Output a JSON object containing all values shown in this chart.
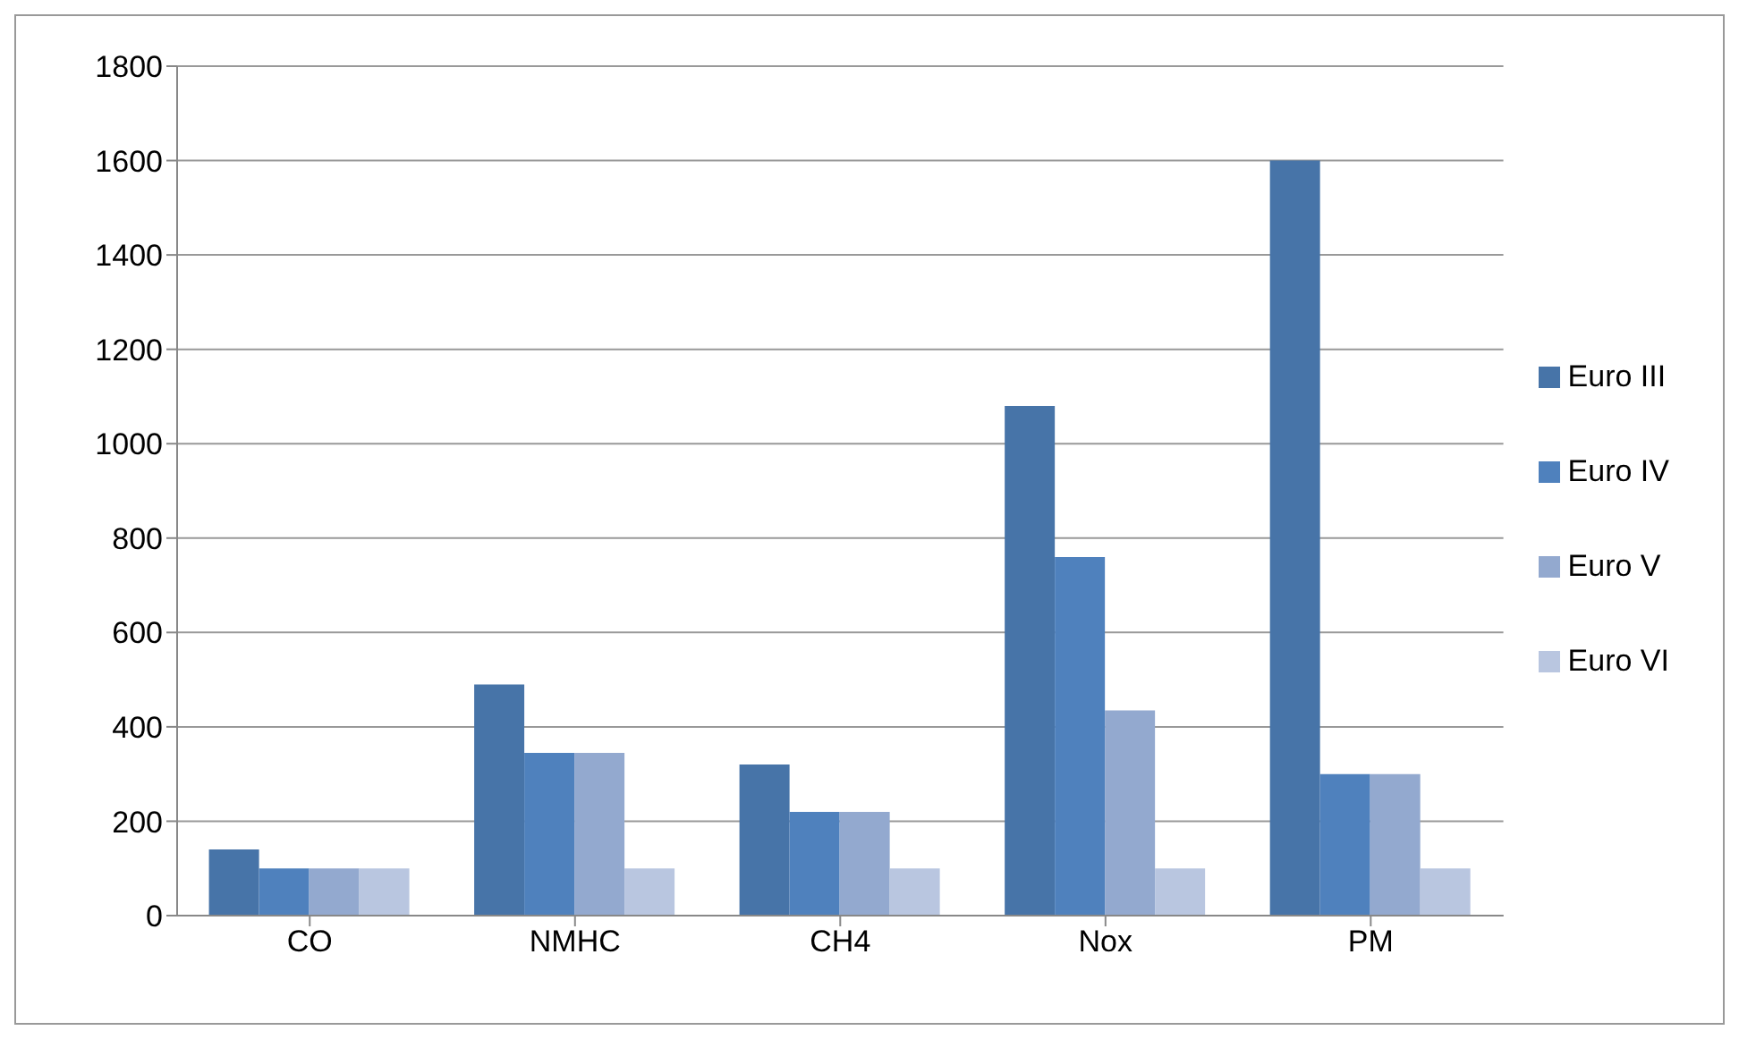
{
  "chart_data": {
    "type": "bar",
    "categories": [
      "CO",
      "NMHC",
      "CH4",
      "Nox",
      "PM"
    ],
    "series": [
      {
        "name": "Euro III",
        "color": "#4774a8",
        "values": [
          140,
          490,
          320,
          1080,
          1600
        ]
      },
      {
        "name": "Euro IV",
        "color": "#4f81bd",
        "values": [
          100,
          345,
          220,
          760,
          300
        ]
      },
      {
        "name": "Euro V",
        "color": "#93a9cf",
        "values": [
          100,
          345,
          220,
          435,
          300
        ]
      },
      {
        "name": "Euro VI",
        "color": "#b9c6e0",
        "values": [
          100,
          100,
          100,
          100,
          100
        ]
      }
    ],
    "ylim": [
      0,
      1800
    ],
    "yticks": [
      0,
      200,
      400,
      600,
      800,
      1000,
      1200,
      1400,
      1600,
      1800
    ],
    "grid": "y",
    "legend": "right"
  }
}
